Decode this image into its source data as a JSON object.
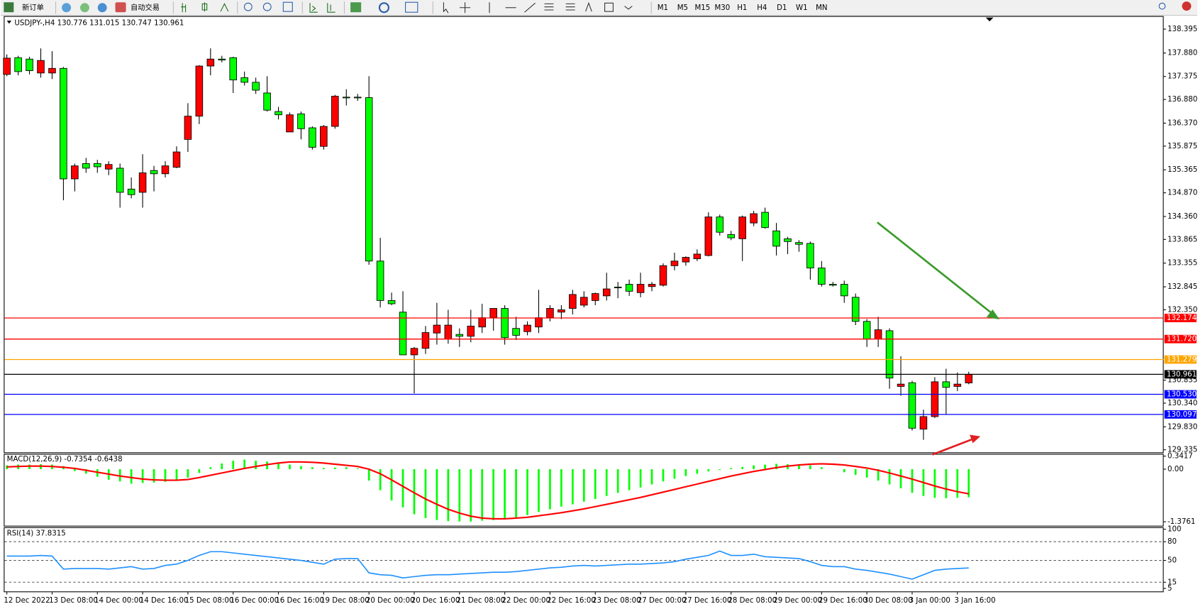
{
  "toolbar": {
    "buttons": [
      "新订单",
      "自动交易"
    ],
    "timeframes": [
      "M1",
      "M5",
      "M15",
      "M30",
      "H1",
      "H4",
      "D1",
      "W1",
      "MN"
    ]
  },
  "chart_data": [
    {
      "type": "candlestick",
      "symbol": "USDJPY-,H4",
      "categories": [
        "12 Dec 2022",
        null,
        null,
        null,
        "13 Dec 08:00",
        null,
        null,
        null,
        "14 Dec 00:00",
        null,
        null,
        null,
        "14 Dec 16:00",
        null,
        null,
        null,
        "15 Dec 08:00",
        null,
        null,
        null,
        "16 Dec 00:00",
        null,
        null,
        null,
        "16 Dec 16:00",
        null,
        null,
        null,
        "19 Dec 08:00",
        null,
        null,
        null,
        "20 Dec 00:00",
        null,
        null,
        null,
        "20 Dec 16:00",
        null,
        null,
        null,
        "21 Dec 08:00",
        null,
        null,
        null,
        "22 Dec 00:00",
        null,
        null,
        null,
        "22 Dec 16:00",
        null,
        null,
        null,
        "23 Dec 08:00",
        null,
        null,
        null,
        "27 Dec 00:00",
        null,
        null,
        null,
        "27 Dec 16:00",
        null,
        null,
        null,
        "28 Dec 08:00",
        null,
        null,
        null,
        "29 Dec 00:00",
        null,
        null,
        null,
        "29 Dec 16:00",
        null,
        null,
        null,
        "30 Dec 08:00",
        null,
        null,
        null,
        "3 Jan 00:00",
        null,
        null,
        null,
        "3 Jan 16:00",
        null
      ],
      "open": [
        137.42,
        137.78,
        137.75,
        137.45,
        137.45,
        137.55,
        135.17,
        135.5,
        135.5,
        135.38,
        135.4,
        134.95,
        134.88,
        135.35,
        135.28,
        135.42,
        136.02,
        136.52,
        137.6,
        137.75,
        137.78,
        137.35,
        137.25,
        137.02,
        136.62,
        136.18,
        136.57,
        136.27,
        135.87,
        136.3,
        136.93,
        136.93,
        136.92,
        133.4,
        132.55,
        132.3,
        131.38,
        131.52,
        131.85,
        131.72,
        131.82,
        131.78,
        131.98,
        132.18,
        132.38,
        131.95,
        131.88,
        131.98,
        132.18,
        132.3,
        132.38,
        132.45,
        132.55,
        132.65,
        132.84,
        132.9,
        132.72,
        132.85,
        132.88,
        133.3,
        133.38,
        133.45,
        133.52,
        134.35,
        133.97,
        133.88,
        134.22,
        134.45,
        134.05,
        133.88,
        133.8,
        133.78,
        133.25,
        132.9,
        132.9,
        132.62,
        132.1,
        131.72,
        131.9,
        130.7,
        130.78,
        129.78,
        130.05,
        130.8,
        130.7,
        130.776
      ],
      "high": [
        137.85,
        137.82,
        137.8,
        137.98,
        137.92,
        137.58,
        135.5,
        135.62,
        135.58,
        135.55,
        135.5,
        135.2,
        135.7,
        135.45,
        135.55,
        135.87,
        136.8,
        137.62,
        137.98,
        137.82,
        137.8,
        137.48,
        137.35,
        137.38,
        136.72,
        136.6,
        136.62,
        136.3,
        136.33,
        136.98,
        137.1,
        137.0,
        137.38,
        133.9,
        132.72,
        132.75,
        131.55,
        132.0,
        132.5,
        132.35,
        131.95,
        132.35,
        132.48,
        132.38,
        132.45,
        132.2,
        132.1,
        132.78,
        132.45,
        132.45,
        132.78,
        132.75,
        132.72,
        133.15,
        132.95,
        133.0,
        133.15,
        132.95,
        133.35,
        133.58,
        133.5,
        133.65,
        134.45,
        134.4,
        134.05,
        134.38,
        134.48,
        134.55,
        134.22,
        133.92,
        133.85,
        133.82,
        133.4,
        132.95,
        132.98,
        132.7,
        132.15,
        132.2,
        131.95,
        131.35,
        130.82,
        130.2,
        130.9,
        131.08,
        131.0,
        131.015
      ],
      "low": [
        137.38,
        137.4,
        137.42,
        137.35,
        137.32,
        134.71,
        134.9,
        135.3,
        135.3,
        135.25,
        134.55,
        134.75,
        134.55,
        134.9,
        135.2,
        135.4,
        135.75,
        136.35,
        137.4,
        137.68,
        137.02,
        137.18,
        137.0,
        136.62,
        136.45,
        136.18,
        136.02,
        135.8,
        135.8,
        136.25,
        136.75,
        136.85,
        133.32,
        132.4,
        132.45,
        131.4,
        130.55,
        131.4,
        131.6,
        131.62,
        131.55,
        131.65,
        131.85,
        131.9,
        131.6,
        131.7,
        131.8,
        131.85,
        132.1,
        132.15,
        132.25,
        132.4,
        132.45,
        132.55,
        132.6,
        132.65,
        132.62,
        132.75,
        132.85,
        133.2,
        133.3,
        133.4,
        133.5,
        133.95,
        133.85,
        133.4,
        134.15,
        134.1,
        133.52,
        133.55,
        133.6,
        133.0,
        132.85,
        132.85,
        132.5,
        132.02,
        131.55,
        131.55,
        130.65,
        130.5,
        129.75,
        129.55,
        130.02,
        130.1,
        130.6,
        130.747
      ],
      "close": [
        137.77,
        137.48,
        137.5,
        137.72,
        137.55,
        135.17,
        135.45,
        135.4,
        135.43,
        135.48,
        134.88,
        134.83,
        135.3,
        135.28,
        135.45,
        135.75,
        136.52,
        137.6,
        137.75,
        137.73,
        137.3,
        137.25,
        137.08,
        136.65,
        136.55,
        136.55,
        136.25,
        135.85,
        136.3,
        136.95,
        136.92,
        136.92,
        133.4,
        132.55,
        132.48,
        131.38,
        131.52,
        131.86,
        132.02,
        132.02,
        131.78,
        132.0,
        132.18,
        132.38,
        131.75,
        131.8,
        132.02,
        132.18,
        132.38,
        132.35,
        132.68,
        132.62,
        132.7,
        132.8,
        132.84,
        132.75,
        132.9,
        132.9,
        133.3,
        133.4,
        133.48,
        133.55,
        134.35,
        134.02,
        133.9,
        134.35,
        134.42,
        134.12,
        133.72,
        133.82,
        133.76,
        133.25,
        132.9,
        132.88,
        132.65,
        132.1,
        131.72,
        131.92,
        130.88,
        130.75,
        129.8,
        130.05,
        130.8,
        130.68,
        130.75,
        130.961
      ],
      "up_color": "#ff0000",
      "down_color": "#00ff00",
      "ylim": [
        129.28,
        138.66
      ],
      "yticks": [
        138.395,
        {
          "value": 137.88,
          "label": "137.880"
        },
        137.375,
        {
          "value": 136.88,
          "label": "136.880"
        },
        {
          "value": 136.37,
          "label": "136.370"
        },
        135.875,
        135.365,
        {
          "value": 134.87,
          "label": "134.870"
        },
        {
          "value": 134.36,
          "label": "134.360"
        },
        133.865,
        133.355,
        132.845,
        {
          "value": 132.35,
          "label": "132.350"
        },
        130.835,
        {
          "value": 130.34,
          "label": "130.340"
        },
        {
          "value": 129.83,
          "label": "129.830"
        },
        129.335
      ],
      "lines": [
        {
          "value": 132.174,
          "color": "#ff0000"
        },
        {
          "value": {
            "value": 131.72,
            "label": "131.720"
          },
          "color": "#ff0000"
        },
        {
          "value": 131.279,
          "color": "#ffa500"
        },
        {
          "value": 130.961,
          "color": "#000000"
        },
        {
          "value": {
            "value": 130.53,
            "label": "130.530"
          },
          "color": "#0000ff"
        },
        {
          "value": 130.097,
          "color": "#0000ff"
        }
      ]
    },
    {
      "type": "macd",
      "title": "MACD(12,26,9)",
      "histogram": {
        "color": "#00ff00",
        "values": [
          0.1,
          0.12,
          0.12,
          0.13,
          0.12,
          0.08,
          -0.05,
          -0.12,
          -0.2,
          -0.28,
          -0.32,
          -0.38,
          -0.36,
          -0.35,
          -0.33,
          -0.3,
          -0.22,
          -0.1,
          0.05,
          0.15,
          0.22,
          0.25,
          0.22,
          0.2,
          0.15,
          0.12,
          0.08,
          0.05,
          0.03,
          0.04,
          0.05,
          0.02,
          -0.3,
          -0.55,
          -0.82,
          -1.0,
          -1.18,
          -1.28,
          -1.33,
          -1.36,
          -1.37,
          -1.37,
          -1.35,
          -1.33,
          -1.3,
          -1.26,
          -1.2,
          -1.12,
          -1.05,
          -0.98,
          -0.92,
          -0.85,
          -0.78,
          -0.7,
          -0.62,
          -0.55,
          -0.48,
          -0.4,
          -0.32,
          -0.25,
          -0.18,
          -0.12,
          -0.06,
          -0.02,
          0.03,
          0.06,
          0.1,
          0.12,
          0.14,
          0.13,
          0.12,
          0.1,
          0.05,
          0.0,
          -0.08,
          -0.15,
          -0.22,
          -0.3,
          -0.4,
          -0.5,
          -0.62,
          -0.7,
          -0.75,
          -0.76,
          -0.75,
          -0.7354
        ]
      },
      "signal": {
        "color": "#ff0000",
        "values": [
          0.06,
          0.07,
          0.08,
          0.08,
          0.07,
          0.05,
          0.02,
          -0.03,
          -0.08,
          -0.13,
          -0.18,
          -0.22,
          -0.26,
          -0.28,
          -0.29,
          -0.29,
          -0.27,
          -0.22,
          -0.16,
          -0.1,
          -0.04,
          0.02,
          0.07,
          0.12,
          0.16,
          0.19,
          0.19,
          0.18,
          0.16,
          0.13,
          0.1,
          0.07,
          0.0,
          -0.12,
          -0.28,
          -0.45,
          -0.62,
          -0.78,
          -0.92,
          -1.05,
          -1.15,
          -1.23,
          -1.28,
          -1.3,
          -1.3,
          -1.28,
          -1.26,
          -1.22,
          -1.18,
          -1.14,
          -1.09,
          -1.04,
          -0.98,
          -0.92,
          -0.86,
          -0.8,
          -0.74,
          -0.67,
          -0.6,
          -0.53,
          -0.46,
          -0.39,
          -0.32,
          -0.25,
          -0.18,
          -0.12,
          -0.06,
          -0.01,
          0.04,
          0.08,
          0.11,
          0.13,
          0.14,
          0.13,
          0.11,
          0.07,
          0.03,
          -0.03,
          -0.1,
          -0.18,
          -0.26,
          -0.35,
          -0.44,
          -0.52,
          -0.59,
          -0.6438
        ]
      },
      "ylim": [
        -1.5,
        0.38
      ],
      "yticks": [
        0.3417,
        {
          "value": 0,
          "label": "0.00"
        },
        -1.3761
      ]
    },
    {
      "type": "rsi",
      "title": "RSI(14)",
      "color": "#1e90ff",
      "values": [
        57,
        57,
        57,
        58,
        57,
        36,
        37,
        37,
        37,
        36,
        38,
        40,
        36,
        37,
        42,
        44,
        50,
        58,
        64,
        64,
        62,
        60,
        58,
        56,
        54,
        52,
        50,
        47,
        44,
        52,
        53,
        53,
        30,
        27,
        26,
        22,
        24,
        26,
        27,
        27,
        28,
        29,
        30,
        31,
        31,
        32,
        34,
        36,
        38,
        39,
        41,
        42,
        41,
        42,
        43,
        44,
        44,
        45,
        46,
        48,
        52,
        55,
        58,
        65,
        58,
        58,
        60,
        56,
        55,
        54,
        53,
        48,
        42,
        40,
        40,
        36,
        34,
        31,
        28,
        24,
        20,
        27,
        34,
        36,
        37,
        37.8315
      ],
      "ylim": [
        -1,
        102
      ],
      "yticks": [
        100,
        80,
        50,
        15,
        5
      ],
      "levels": [
        80,
        50,
        15
      ]
    }
  ]
}
